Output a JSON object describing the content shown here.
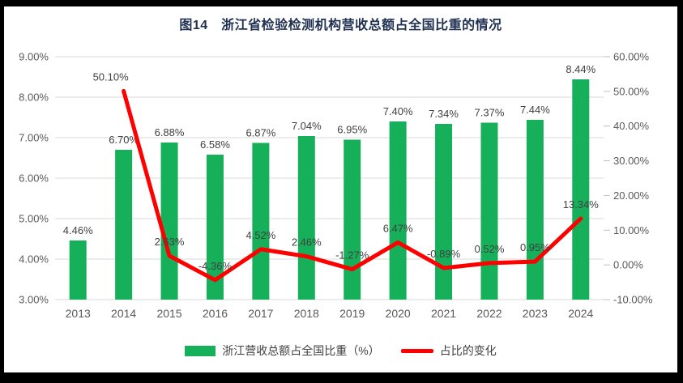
{
  "figure": {
    "title": "图14　浙江省检验检测机构营收总额占全国比重的情况"
  },
  "colors": {
    "bar": "#17B05A",
    "line": "#FF0000",
    "title_text": "#1F3050",
    "axis_text": "#595959",
    "data_label_text": "#404040",
    "gridline": "#D9D9D9",
    "tick_mark": "#BFBFBF",
    "frame": "#000000",
    "background": "#FFFFFF"
  },
  "chart_data": {
    "type": "combo-bar-line",
    "title": "图14　浙江省检验检测机构营收总额占全国比重的情况",
    "categories": [
      "2013",
      "2014",
      "2015",
      "2016",
      "2017",
      "2018",
      "2019",
      "2020",
      "2021",
      "2022",
      "2023",
      "2024"
    ],
    "series": [
      {
        "name": "浙江营收总额占全国比重（%）",
        "type": "bar",
        "axis": "left",
        "color": "#17B05A",
        "values": [
          4.46,
          6.7,
          6.88,
          6.58,
          6.87,
          7.04,
          6.95,
          7.4,
          7.34,
          7.37,
          7.44,
          8.44
        ],
        "labels": [
          "4.46%",
          "6.70%",
          "6.88%",
          "6.58%",
          "6.87%",
          "7.04%",
          "6.95%",
          "7.40%",
          "7.34%",
          "7.37%",
          "7.44%",
          "8.44%"
        ]
      },
      {
        "name": "占比的变化",
        "type": "line",
        "axis": "right",
        "color": "#FF0000",
        "values": [
          null,
          50.1,
          2.63,
          -4.36,
          4.52,
          2.46,
          -1.27,
          6.47,
          -0.89,
          0.52,
          0.95,
          13.34
        ],
        "labels": [
          null,
          "50.10%",
          "2.63%",
          "-4.36%",
          "4.52%",
          "2.46%",
          "-1.27%",
          "6.47%",
          "-0.89%",
          "0.52%",
          "0.95%",
          "13.34%"
        ]
      }
    ],
    "left_axis": {
      "min": 3,
      "max": 9,
      "ticks": [
        "9.00%",
        "8.00%",
        "7.00%",
        "6.00%",
        "5.00%",
        "4.00%",
        "3.00%"
      ]
    },
    "right_axis": {
      "min": -10,
      "max": 60,
      "ticks": [
        "60.00%",
        "50.00%",
        "40.00%",
        "30.00%",
        "20.00%",
        "10.00%",
        "0.00%",
        "-10.00%"
      ]
    },
    "grid": true,
    "legend_position": "bottom"
  },
  "legend": {
    "bar_label": "浙江营收总额占全国比重（%）",
    "line_label": "占比的变化"
  }
}
